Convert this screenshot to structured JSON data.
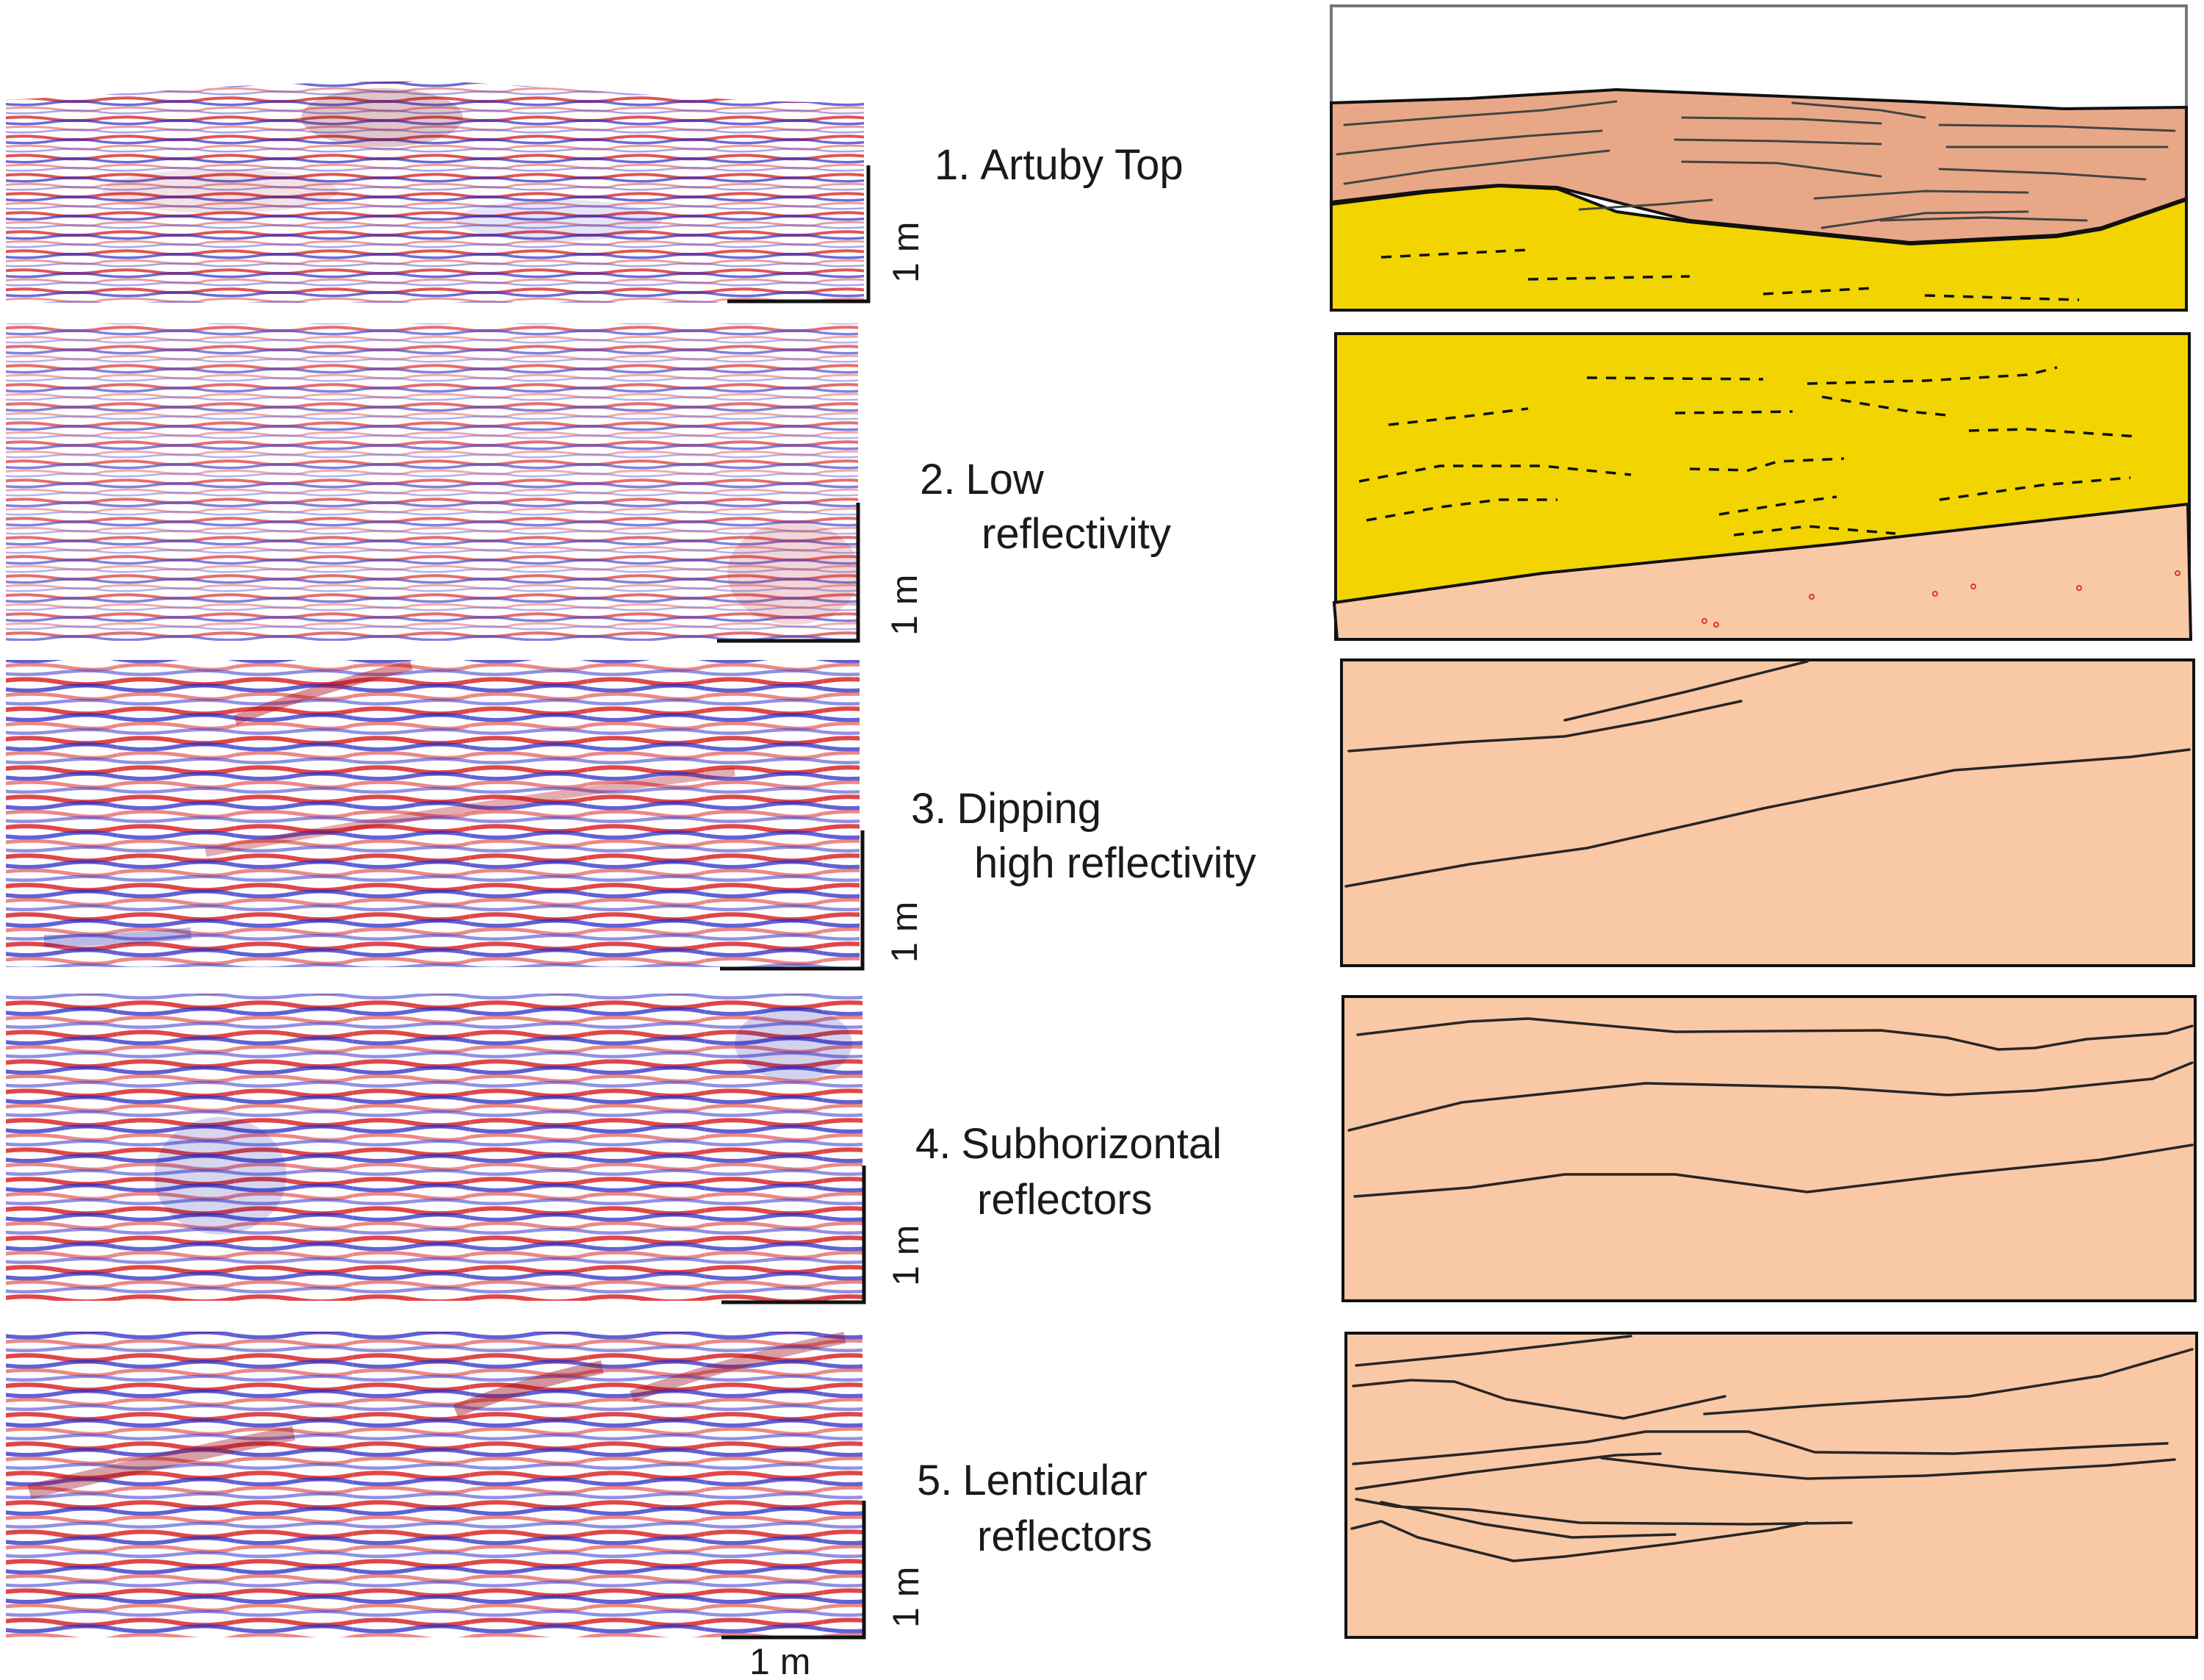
{
  "facies": [
    {
      "number": "1.",
      "line1": "Artuby Top",
      "line2": ""
    },
    {
      "number": "2.",
      "line1": "Low",
      "line2": "reflectivity"
    },
    {
      "number": "3.",
      "line1": "Dipping",
      "line2": "high reflectivity"
    },
    {
      "number": "4.",
      "line1": "Subhorizontal",
      "line2": "reflectors"
    },
    {
      "number": "5.",
      "line1": "Lenticular",
      "line2": "reflectors"
    }
  ],
  "scale": {
    "vertical_label": "1 m",
    "horizontal_label": "1 m"
  },
  "colors": {
    "wave_red": "#d7191c",
    "wave_blue": "#2c2cc8",
    "interp_salmon": "#f9c8a4",
    "interp_brown": "#e8a888",
    "interp_yellow": "#f2d500"
  }
}
